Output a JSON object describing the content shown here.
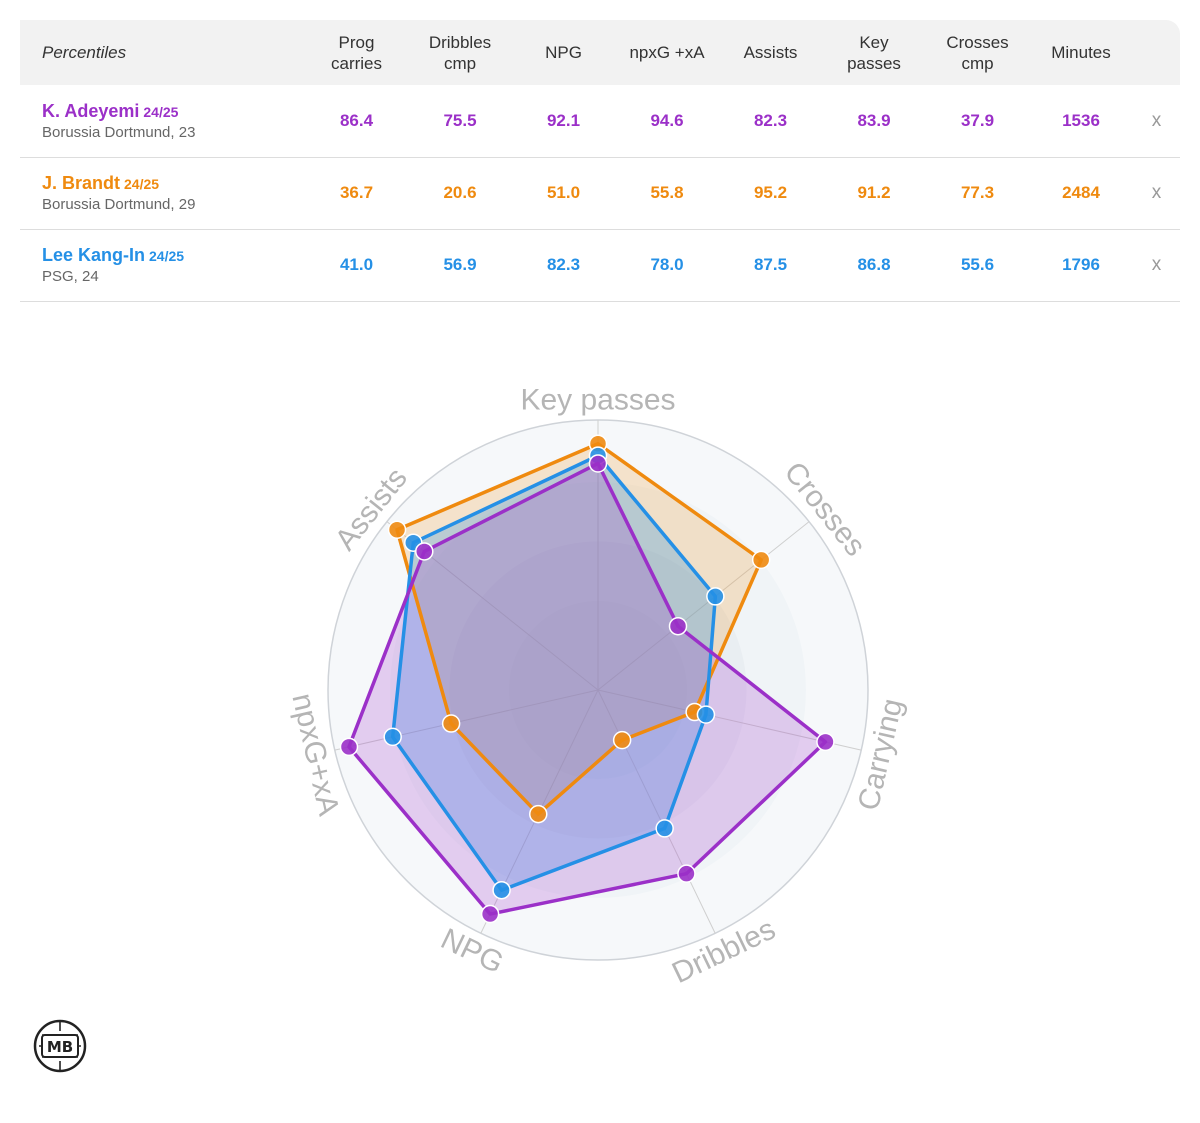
{
  "table": {
    "corner_label": "Percentiles",
    "columns": [
      {
        "line1": "Prog",
        "line2": "carries"
      },
      {
        "line1": "Dribbles",
        "line2": "cmp"
      },
      {
        "line1": "NPG",
        "line2": ""
      },
      {
        "line1": "npxG +xA",
        "line2": ""
      },
      {
        "line1": "Assists",
        "line2": ""
      },
      {
        "line1": "Key",
        "line2": "passes"
      },
      {
        "line1": "Crosses",
        "line2": "cmp"
      },
      {
        "line1": "Minutes",
        "line2": ""
      }
    ],
    "remove_label": "x",
    "rows": [
      {
        "name": "K. Adeyemi",
        "season": "24/25",
        "club": "Borussia Dortmund, 23",
        "values": [
          "86.4",
          "75.5",
          "92.1",
          "94.6",
          "82.3",
          "83.9",
          "37.9",
          "1536"
        ]
      },
      {
        "name": "J. Brandt",
        "season": "24/25",
        "club": "Borussia Dortmund, 29",
        "values": [
          "36.7",
          "20.6",
          "51.0",
          "55.8",
          "95.2",
          "91.2",
          "77.3",
          "2484"
        ]
      },
      {
        "name": "Lee Kang-In",
        "season": "24/25",
        "club": "PSG, 24",
        "values": [
          "41.0",
          "56.9",
          "82.3",
          "78.0",
          "87.5",
          "86.8",
          "55.6",
          "1796"
        ]
      }
    ]
  },
  "colors": {
    "player1": "#9b30c8",
    "player2": "#ef8a0f",
    "player3": "#2590e6",
    "axis_label": "#b5b5b5",
    "grid": "#cfd3d8"
  },
  "chart_data": {
    "type": "radar",
    "axes": [
      "Key passes",
      "Crosses",
      "Carrying",
      "Dribbles",
      "NPG",
      "npxG+xA",
      "Assists"
    ],
    "range": [
      0,
      100
    ],
    "series": [
      {
        "name": "K. Adeyemi",
        "values": [
          83.9,
          37.9,
          86.4,
          75.5,
          92.1,
          94.6,
          82.3
        ]
      },
      {
        "name": "J. Brandt",
        "values": [
          91.2,
          77.3,
          36.7,
          20.6,
          51.0,
          55.8,
          95.2
        ]
      },
      {
        "name": "Lee Kang-In",
        "values": [
          86.8,
          55.6,
          41.0,
          56.9,
          82.3,
          78.0,
          87.5
        ]
      }
    ]
  },
  "logo": {
    "text": "MB"
  }
}
